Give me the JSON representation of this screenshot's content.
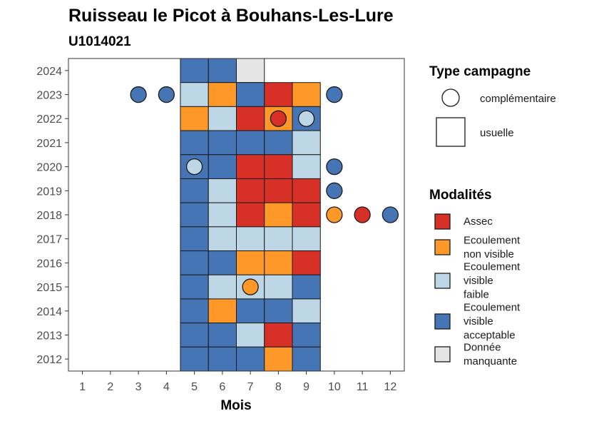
{
  "chart_data": {
    "type": "heatmap",
    "title": "Ruisseau le Picot à Bouhans-Les-Lure",
    "subtitle": "U1014021",
    "xlabel": "Mois",
    "ylabel": "",
    "x_ticks": [
      "1",
      "2",
      "3",
      "4",
      "5",
      "6",
      "7",
      "8",
      "9",
      "10",
      "11",
      "12"
    ],
    "y_ticks": [
      "2012",
      "2013",
      "2014",
      "2015",
      "2016",
      "2017",
      "2018",
      "2019",
      "2020",
      "2021",
      "2022",
      "2023",
      "2024"
    ],
    "xlim": [
      0.5,
      12.5
    ],
    "ylim": [
      2011.5,
      2024.5
    ],
    "grid": false,
    "legend_position": "right",
    "colors": {
      "Assec": "#d73027",
      "Ecoulement non visible": "#fe9929",
      "Ecoulement visible faible": "#bdd7e7",
      "Ecoulement visible acceptable": "#4575b4",
      "Donnée manquante": "#e5e5e5"
    },
    "legend_campagne": {
      "title": "Type campagne",
      "items": [
        {
          "key": "complementaire",
          "label": "complémentaire",
          "shape": "circle"
        },
        {
          "key": "usuelle",
          "label": "usuelle",
          "shape": "square"
        }
      ]
    },
    "legend_modalites": {
      "title": "Modalités",
      "items": [
        {
          "label": "Assec",
          "lines": [
            "Assec"
          ]
        },
        {
          "label": "Ecoulement non visible",
          "lines": [
            "Ecoulement",
            "non visible"
          ]
        },
        {
          "label": "Ecoulement visible faible",
          "lines": [
            "Ecoulement",
            "visible",
            "faible"
          ]
        },
        {
          "label": "Ecoulement visible acceptable",
          "lines": [
            "Ecoulement",
            "visible",
            "acceptable"
          ]
        },
        {
          "label": "Donnée manquante",
          "lines": [
            "Donnée",
            "manquante"
          ]
        }
      ]
    },
    "usuelle": [
      {
        "year": 2024,
        "month": 5,
        "modalite": "Ecoulement visible acceptable"
      },
      {
        "year": 2024,
        "month": 6,
        "modalite": "Ecoulement visible acceptable"
      },
      {
        "year": 2024,
        "month": 7,
        "modalite": "Donnée manquante"
      },
      {
        "year": 2023,
        "month": 5,
        "modalite": "Ecoulement visible faible"
      },
      {
        "year": 2023,
        "month": 6,
        "modalite": "Ecoulement non visible"
      },
      {
        "year": 2023,
        "month": 7,
        "modalite": "Ecoulement visible acceptable"
      },
      {
        "year": 2023,
        "month": 8,
        "modalite": "Assec"
      },
      {
        "year": 2023,
        "month": 9,
        "modalite": "Ecoulement non visible"
      },
      {
        "year": 2022,
        "month": 5,
        "modalite": "Ecoulement non visible"
      },
      {
        "year": 2022,
        "month": 6,
        "modalite": "Ecoulement visible faible"
      },
      {
        "year": 2022,
        "month": 7,
        "modalite": "Assec"
      },
      {
        "year": 2022,
        "month": 8,
        "modalite": "Ecoulement non visible"
      },
      {
        "year": 2022,
        "month": 9,
        "modalite": "Ecoulement visible acceptable"
      },
      {
        "year": 2021,
        "month": 5,
        "modalite": "Ecoulement visible acceptable"
      },
      {
        "year": 2021,
        "month": 6,
        "modalite": "Ecoulement visible acceptable"
      },
      {
        "year": 2021,
        "month": 7,
        "modalite": "Ecoulement visible acceptable"
      },
      {
        "year": 2021,
        "month": 8,
        "modalite": "Ecoulement visible acceptable"
      },
      {
        "year": 2021,
        "month": 9,
        "modalite": "Ecoulement visible faible"
      },
      {
        "year": 2020,
        "month": 5,
        "modalite": "Ecoulement visible acceptable"
      },
      {
        "year": 2020,
        "month": 6,
        "modalite": "Ecoulement visible acceptable"
      },
      {
        "year": 2020,
        "month": 7,
        "modalite": "Assec"
      },
      {
        "year": 2020,
        "month": 8,
        "modalite": "Assec"
      },
      {
        "year": 2020,
        "month": 9,
        "modalite": "Ecoulement visible faible"
      },
      {
        "year": 2019,
        "month": 5,
        "modalite": "Ecoulement visible acceptable"
      },
      {
        "year": 2019,
        "month": 6,
        "modalite": "Ecoulement visible faible"
      },
      {
        "year": 2019,
        "month": 7,
        "modalite": "Assec"
      },
      {
        "year": 2019,
        "month": 8,
        "modalite": "Assec"
      },
      {
        "year": 2019,
        "month": 9,
        "modalite": "Assec"
      },
      {
        "year": 2018,
        "month": 5,
        "modalite": "Ecoulement visible acceptable"
      },
      {
        "year": 2018,
        "month": 6,
        "modalite": "Ecoulement visible faible"
      },
      {
        "year": 2018,
        "month": 7,
        "modalite": "Assec"
      },
      {
        "year": 2018,
        "month": 8,
        "modalite": "Ecoulement non visible"
      },
      {
        "year": 2018,
        "month": 9,
        "modalite": "Assec"
      },
      {
        "year": 2017,
        "month": 5,
        "modalite": "Ecoulement visible acceptable"
      },
      {
        "year": 2017,
        "month": 6,
        "modalite": "Ecoulement visible faible"
      },
      {
        "year": 2017,
        "month": 7,
        "modalite": "Ecoulement visible faible"
      },
      {
        "year": 2017,
        "month": 8,
        "modalite": "Ecoulement visible faible"
      },
      {
        "year": 2017,
        "month": 9,
        "modalite": "Ecoulement visible faible"
      },
      {
        "year": 2016,
        "month": 5,
        "modalite": "Ecoulement visible acceptable"
      },
      {
        "year": 2016,
        "month": 6,
        "modalite": "Ecoulement visible acceptable"
      },
      {
        "year": 2016,
        "month": 7,
        "modalite": "Ecoulement non visible"
      },
      {
        "year": 2016,
        "month": 8,
        "modalite": "Ecoulement non visible"
      },
      {
        "year": 2016,
        "month": 9,
        "modalite": "Assec"
      },
      {
        "year": 2015,
        "month": 5,
        "modalite": "Ecoulement visible acceptable"
      },
      {
        "year": 2015,
        "month": 6,
        "modalite": "Ecoulement visible faible"
      },
      {
        "year": 2015,
        "month": 7,
        "modalite": "Ecoulement visible faible"
      },
      {
        "year": 2015,
        "month": 8,
        "modalite": "Ecoulement visible faible"
      },
      {
        "year": 2015,
        "month": 9,
        "modalite": "Ecoulement visible acceptable"
      },
      {
        "year": 2014,
        "month": 5,
        "modalite": "Ecoulement visible acceptable"
      },
      {
        "year": 2014,
        "month": 6,
        "modalite": "Ecoulement non visible"
      },
      {
        "year": 2014,
        "month": 7,
        "modalite": "Ecoulement visible acceptable"
      },
      {
        "year": 2014,
        "month": 8,
        "modalite": "Ecoulement visible acceptable"
      },
      {
        "year": 2014,
        "month": 9,
        "modalite": "Ecoulement visible faible"
      },
      {
        "year": 2013,
        "month": 5,
        "modalite": "Ecoulement visible acceptable"
      },
      {
        "year": 2013,
        "month": 6,
        "modalite": "Ecoulement visible acceptable"
      },
      {
        "year": 2013,
        "month": 7,
        "modalite": "Ecoulement visible faible"
      },
      {
        "year": 2013,
        "month": 8,
        "modalite": "Assec"
      },
      {
        "year": 2013,
        "month": 9,
        "modalite": "Ecoulement visible acceptable"
      },
      {
        "year": 2012,
        "month": 5,
        "modalite": "Ecoulement visible acceptable"
      },
      {
        "year": 2012,
        "month": 6,
        "modalite": "Ecoulement visible acceptable"
      },
      {
        "year": 2012,
        "month": 7,
        "modalite": "Ecoulement visible acceptable"
      },
      {
        "year": 2012,
        "month": 8,
        "modalite": "Ecoulement non visible"
      },
      {
        "year": 2012,
        "month": 9,
        "modalite": "Ecoulement visible acceptable"
      }
    ],
    "complementaire": [
      {
        "year": 2023,
        "month": 3,
        "modalite": "Ecoulement visible acceptable"
      },
      {
        "year": 2023,
        "month": 4,
        "modalite": "Ecoulement visible acceptable"
      },
      {
        "year": 2023,
        "month": 10,
        "modalite": "Ecoulement visible acceptable"
      },
      {
        "year": 2022,
        "month": 8,
        "modalite": "Assec"
      },
      {
        "year": 2022,
        "month": 9,
        "modalite": "Ecoulement visible faible"
      },
      {
        "year": 2020,
        "month": 5,
        "modalite": "Ecoulement visible faible"
      },
      {
        "year": 2020,
        "month": 10,
        "modalite": "Ecoulement visible acceptable"
      },
      {
        "year": 2019,
        "month": 10,
        "modalite": "Ecoulement visible acceptable"
      },
      {
        "year": 2018,
        "month": 10,
        "modalite": "Ecoulement non visible"
      },
      {
        "year": 2018,
        "month": 11,
        "modalite": "Assec"
      },
      {
        "year": 2018,
        "month": 12,
        "modalite": "Ecoulement visible acceptable"
      },
      {
        "year": 2015,
        "month": 7,
        "modalite": "Ecoulement non visible"
      }
    ]
  }
}
